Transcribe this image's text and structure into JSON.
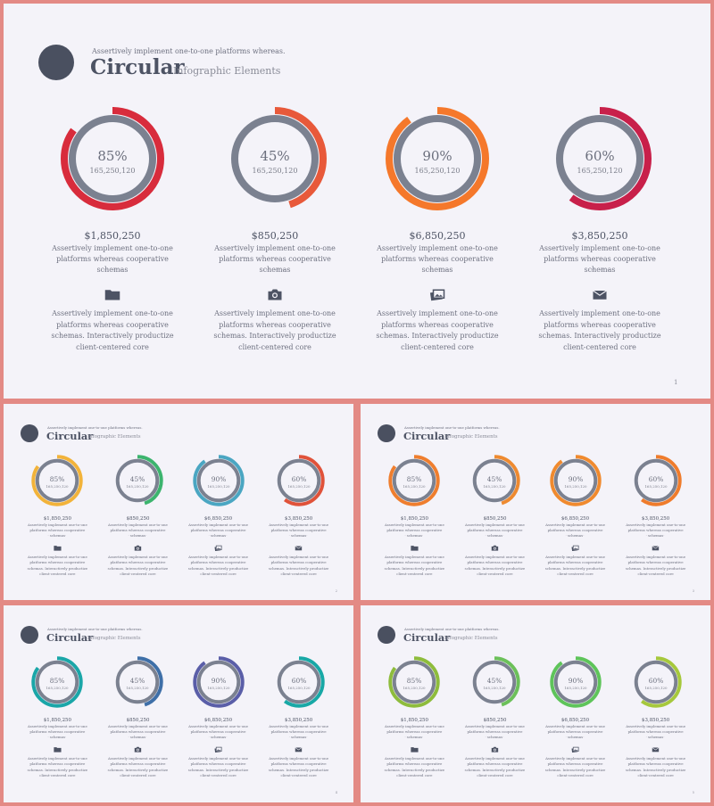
{
  "header": {
    "tagline": "Assertively implement one-to-one platforms whereas.",
    "title": "Circular",
    "subtitle": "Infographic Elements"
  },
  "items": [
    {
      "percent": "85%",
      "value": 0.85,
      "number": "165,250,120",
      "price": "$1,850,250",
      "desc": "Assertively implement one-to-one platforms whereas cooperative schemas",
      "dash": "----------",
      "icon": "folder-icon",
      "body": "Assertively implement one-to-one platforms whereas cooperative schemas. Interactively productize client-centered core"
    },
    {
      "percent": "45%",
      "value": 0.45,
      "number": "165,250,120",
      "price": "$850,250",
      "desc": "Assertively implement one-to-one platforms whereas cooperative schemas",
      "dash": "----------",
      "icon": "camera-icon",
      "body": "Assertively implement one-to-one platforms whereas cooperative schemas. Interactively productize client-centered core"
    },
    {
      "percent": "90%",
      "value": 0.9,
      "number": "165,250,120",
      "price": "$6,850,250",
      "desc": "Assertively implement one-to-one platforms whereas cooperative schemas",
      "dash": "----------",
      "icon": "pictures-icon",
      "body": "Assertively implement one-to-one platforms whereas cooperative schemas. Interactively productize client-centered core"
    },
    {
      "percent": "60%",
      "value": 0.6,
      "number": "165,250,120",
      "price": "$3,850,250",
      "desc": "Assertively implement one-to-one platforms whereas cooperative schemas",
      "dash": "----------",
      "icon": "envelope-icon",
      "body": "Assertively implement one-to-one platforms whereas cooperative schemas. Interactively productize client-centered core"
    }
  ],
  "slides": [
    {
      "page": "1",
      "colors": [
        "#d82c3c",
        "#e8593a",
        "#f5782b",
        "#c8204a"
      ]
    },
    {
      "page": "2",
      "colors": [
        "#f2b33a",
        "#3cb46e",
        "#4aa6c2",
        "#e0523a"
      ]
    },
    {
      "page": "3",
      "colors": [
        "#ef7e2e",
        "#ee8a30",
        "#f08a2e",
        "#ef7c2c"
      ]
    },
    {
      "page": "4",
      "colors": [
        "#1aa6a8",
        "#3e6fa8",
        "#5a5ea8",
        "#18a8a6"
      ]
    },
    {
      "page": "5",
      "colors": [
        "#8ebc3c",
        "#6cc05a",
        "#5ec45a",
        "#a6c83c"
      ]
    }
  ],
  "ring_track_color": "#7b8190",
  "accent_dark": "#4a5060"
}
